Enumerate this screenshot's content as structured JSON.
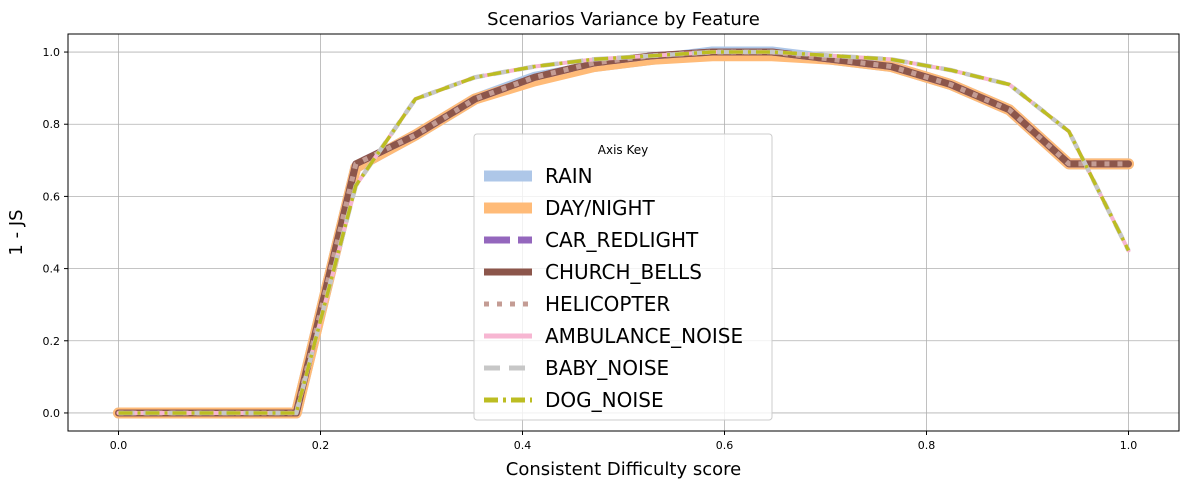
{
  "chart_data": {
    "type": "line",
    "title": "Scenarios Variance by Feature",
    "xlabel": "Consistent Difficulty score",
    "ylabel": "1 - JS",
    "xlim": [
      -0.05,
      1.05
    ],
    "ylim": [
      -0.05,
      1.05
    ],
    "xticks": [
      0.0,
      0.2,
      0.4,
      0.6,
      0.8,
      1.0
    ],
    "xtick_labels": [
      "0.0",
      "0.2",
      "0.4",
      "0.6",
      "0.8",
      "1.0"
    ],
    "yticks": [
      0.0,
      0.2,
      0.4,
      0.6,
      0.8,
      1.0
    ],
    "ytick_labels": [
      "0.0",
      "0.2",
      "0.4",
      "0.6",
      "0.8",
      "1.0"
    ],
    "grid": true,
    "legend": {
      "title": "Axis Key",
      "position": "lower-center"
    },
    "series": [
      {
        "name": "RAIN",
        "color": "#aec7e8",
        "style": "solid",
        "x": [
          0.0,
          0.059,
          0.118,
          0.176,
          0.235,
          0.294,
          0.353,
          0.412,
          0.471,
          0.529,
          0.588,
          0.647,
          0.706,
          0.765,
          0.824,
          0.882,
          0.941,
          1.0
        ],
        "y": [
          0.0,
          0.0,
          0.0,
          0.0,
          0.68,
          0.77,
          0.87,
          0.93,
          0.96,
          0.98,
          1.0,
          1.0,
          0.98,
          0.96,
          0.91,
          0.84,
          0.69,
          0.69
        ]
      },
      {
        "name": "DAY/NIGHT",
        "color": "#ffbb78",
        "style": "solid",
        "x": [
          0.0,
          0.059,
          0.118,
          0.176,
          0.235,
          0.294,
          0.353,
          0.412,
          0.471,
          0.529,
          0.588,
          0.647,
          0.706,
          0.765,
          0.824,
          0.882,
          0.941,
          1.0
        ],
        "y": [
          0.0,
          0.0,
          0.0,
          0.0,
          0.68,
          0.77,
          0.87,
          0.92,
          0.96,
          0.98,
          0.99,
          0.99,
          0.98,
          0.96,
          0.91,
          0.84,
          0.69,
          0.69
        ]
      },
      {
        "name": "CAR_REDLIGHT",
        "color": "#9467bd",
        "style": "dashed",
        "x": [
          0.0,
          0.059,
          0.118,
          0.176,
          0.235,
          0.294,
          0.353,
          0.412,
          0.471,
          0.529,
          0.588,
          0.647,
          0.706,
          0.765,
          0.824,
          0.882,
          0.941,
          1.0
        ],
        "y": [
          0.0,
          0.0,
          0.0,
          0.0,
          0.69,
          0.77,
          0.87,
          0.93,
          0.97,
          0.99,
          1.0,
          1.0,
          0.98,
          0.96,
          0.91,
          0.84,
          0.69,
          0.69
        ]
      },
      {
        "name": "CHURCH_BELLS",
        "color": "#8c564b",
        "style": "solid",
        "x": [
          0.0,
          0.059,
          0.118,
          0.176,
          0.235,
          0.294,
          0.353,
          0.412,
          0.471,
          0.529,
          0.588,
          0.647,
          0.706,
          0.765,
          0.824,
          0.882,
          0.941,
          1.0
        ],
        "y": [
          0.0,
          0.0,
          0.0,
          0.0,
          0.69,
          0.77,
          0.87,
          0.93,
          0.97,
          0.99,
          1.0,
          1.0,
          0.98,
          0.96,
          0.91,
          0.84,
          0.69,
          0.69
        ]
      },
      {
        "name": "HELICOPTER",
        "color": "#c49c94",
        "style": "dotted",
        "x": [
          0.0,
          0.059,
          0.118,
          0.176,
          0.235,
          0.294,
          0.353,
          0.412,
          0.471,
          0.529,
          0.588,
          0.647,
          0.706,
          0.765,
          0.824,
          0.882,
          0.941,
          1.0
        ],
        "y": [
          0.0,
          0.0,
          0.0,
          0.0,
          0.69,
          0.77,
          0.87,
          0.93,
          0.97,
          0.99,
          1.0,
          1.0,
          0.98,
          0.96,
          0.91,
          0.84,
          0.69,
          0.69
        ]
      },
      {
        "name": "AMBULANCE_NOISE",
        "color": "#f7b6d2",
        "style": "solid",
        "x": [
          0.0,
          0.059,
          0.118,
          0.176,
          0.235,
          0.294,
          0.353,
          0.412,
          0.471,
          0.529,
          0.588,
          0.647,
          0.706,
          0.765,
          0.824,
          0.882,
          0.941,
          1.0
        ],
        "y": [
          0.0,
          0.0,
          0.0,
          0.0,
          0.63,
          0.87,
          0.93,
          0.96,
          0.98,
          0.99,
          1.0,
          1.0,
          0.99,
          0.98,
          0.95,
          0.91,
          0.78,
          0.45
        ]
      },
      {
        "name": "BABY_NOISE",
        "color": "#c7c7c7",
        "style": "dashed",
        "x": [
          0.0,
          0.059,
          0.118,
          0.176,
          0.235,
          0.294,
          0.353,
          0.412,
          0.471,
          0.529,
          0.588,
          0.647,
          0.706,
          0.765,
          0.824,
          0.882,
          0.941,
          1.0
        ],
        "y": [
          0.0,
          0.0,
          0.0,
          0.0,
          0.63,
          0.87,
          0.93,
          0.96,
          0.98,
          0.99,
          1.0,
          1.0,
          0.99,
          0.98,
          0.95,
          0.91,
          0.78,
          0.45
        ]
      },
      {
        "name": "DOG_NOISE",
        "color": "#bcbd22",
        "style": "dashdot",
        "x": [
          0.0,
          0.059,
          0.118,
          0.176,
          0.235,
          0.294,
          0.353,
          0.412,
          0.471,
          0.529,
          0.588,
          0.647,
          0.706,
          0.765,
          0.824,
          0.882,
          0.941,
          1.0
        ],
        "y": [
          0.0,
          0.0,
          0.0,
          0.0,
          0.63,
          0.87,
          0.93,
          0.96,
          0.98,
          0.99,
          1.0,
          1.0,
          0.99,
          0.98,
          0.95,
          0.91,
          0.78,
          0.45
        ]
      }
    ]
  }
}
